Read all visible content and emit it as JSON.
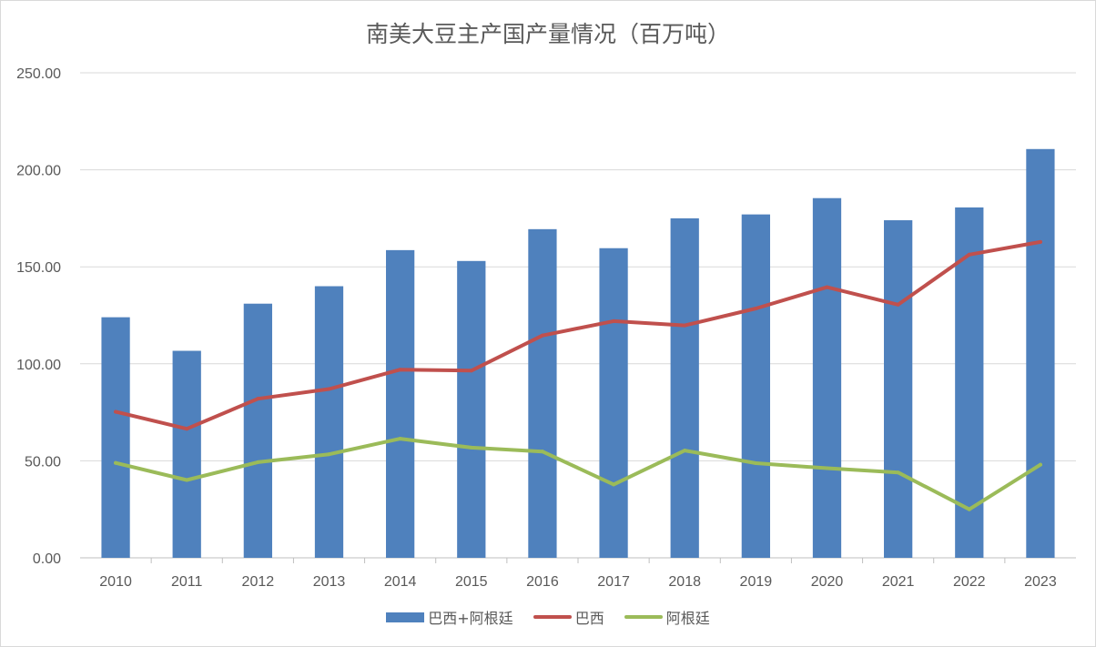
{
  "chart_data": {
    "type": "bar",
    "title": "南美大豆主产国产量情况（百万吨）",
    "categories": [
      "2010",
      "2011",
      "2012",
      "2013",
      "2014",
      "2015",
      "2016",
      "2017",
      "2018",
      "2019",
      "2020",
      "2021",
      "2022",
      "2023"
    ],
    "y_tick_labels": [
      "0.00",
      "50.00",
      "100.00",
      "150.00",
      "200.00",
      "250.00"
    ],
    "ylim": [
      0,
      250
    ],
    "grid": true,
    "legend_position": "bottom",
    "series": [
      {
        "name": "巴西+阿根廷",
        "type": "bar",
        "color": "#4f81bd",
        "values": [
          124.0,
          106.7,
          131.0,
          140.0,
          158.6,
          153.0,
          169.4,
          159.6,
          175.0,
          177.0,
          185.4,
          174.0,
          180.6,
          210.7
        ]
      },
      {
        "name": "巴西",
        "type": "line",
        "color": "#c0504d",
        "values": [
          75.3,
          66.5,
          82.0,
          87.0,
          97.0,
          96.5,
          114.6,
          122.0,
          119.8,
          128.5,
          139.5,
          130.5,
          156.3,
          162.8
        ]
      },
      {
        "name": "阿根廷",
        "type": "line",
        "color": "#9bbb59",
        "values": [
          48.9,
          40.1,
          49.3,
          53.4,
          61.4,
          56.8,
          54.8,
          37.8,
          55.3,
          48.8,
          46.2,
          44.0,
          25.0,
          48.0
        ]
      }
    ]
  }
}
